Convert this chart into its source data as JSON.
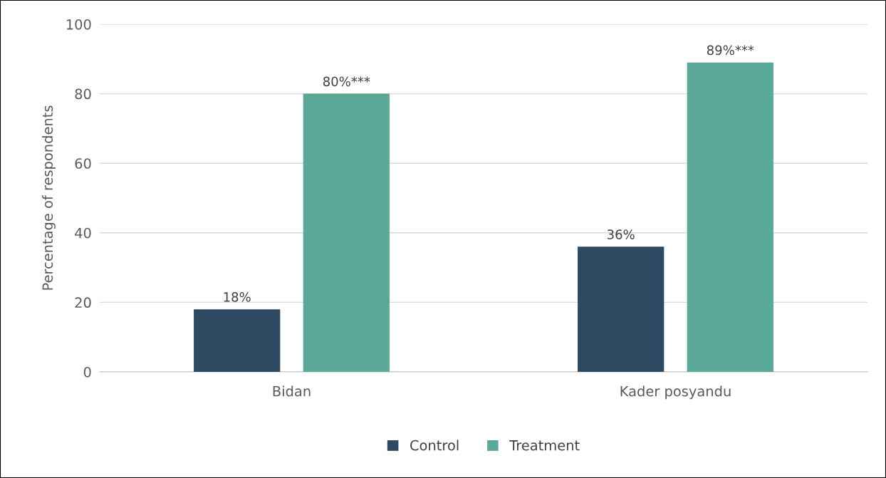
{
  "chart_data": {
    "type": "bar",
    "ylabel": "Percentage of respondents",
    "categories": [
      "Bidan",
      "Kader posyandu"
    ],
    "series": [
      {
        "name": "Control",
        "color": "#2e4a62",
        "values": [
          18,
          36
        ],
        "value_labels": [
          "18%",
          "36%"
        ]
      },
      {
        "name": "Treatment",
        "color": "#5aa898",
        "values": [
          80,
          89
        ],
        "value_labels": [
          "80%***",
          "89%***"
        ]
      }
    ],
    "ylim": [
      0,
      100
    ],
    "yticks": [
      0,
      20,
      40,
      60,
      80,
      100
    ],
    "grid": "y",
    "legend": "bottom"
  }
}
